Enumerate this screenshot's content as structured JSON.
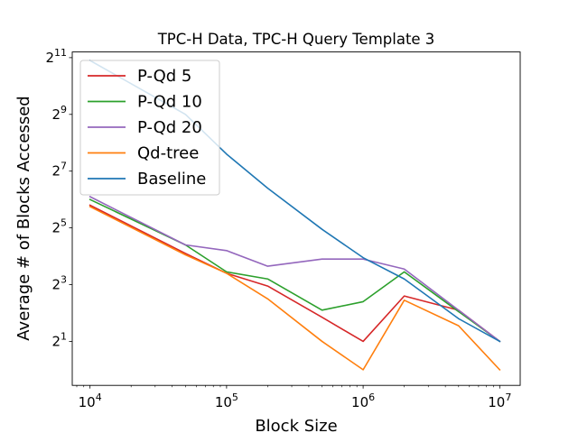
{
  "chart_data": {
    "type": "line",
    "title": "TPC-H Data, TPC-H Query Template 3",
    "xlabel": "Block Size",
    "ylabel": "Average # of Blocks Accessed",
    "xscale": "log10",
    "yscale": "log2",
    "xlim_log10": [
      3.87,
      7.15
    ],
    "ylim_log2": [
      -0.55,
      11.2
    ],
    "xticks": [
      {
        "base": "10",
        "exp": "4",
        "log10": 4
      },
      {
        "base": "10",
        "exp": "5",
        "log10": 5
      },
      {
        "base": "10",
        "exp": "6",
        "log10": 6
      },
      {
        "base": "10",
        "exp": "7",
        "log10": 7
      }
    ],
    "yticks": [
      {
        "base": "2",
        "exp": "1",
        "log2": 1
      },
      {
        "base": "2",
        "exp": "3",
        "log2": 3
      },
      {
        "base": "2",
        "exp": "5",
        "log2": 5
      },
      {
        "base": "2",
        "exp": "7",
        "log2": 7
      },
      {
        "base": "2",
        "exp": "9",
        "log2": 9
      },
      {
        "base": "2",
        "exp": "11",
        "log2": 11
      }
    ],
    "x": [
      10000,
      50000,
      100000,
      200000,
      500000,
      1000000,
      2000000,
      5000000,
      10000000
    ],
    "series": [
      {
        "name": "P-Qd 5",
        "color": "#d62728",
        "values_log2": [
          5.8,
          4.1,
          3.4,
          2.95,
          1.85,
          1.0,
          2.6,
          2.1,
          1.0
        ]
      },
      {
        "name": "P-Qd 10",
        "color": "#2ca02c",
        "values_log2": [
          6.0,
          4.4,
          3.45,
          3.2,
          2.1,
          2.4,
          3.45,
          2.05,
          1.0
        ]
      },
      {
        "name": "P-Qd 20",
        "color": "#9467bd",
        "values_log2": [
          6.1,
          4.4,
          4.2,
          3.65,
          3.9,
          3.9,
          3.55,
          2.1,
          1.0
        ]
      },
      {
        "name": "Qd-tree",
        "color": "#ff7f0e",
        "values_log2": [
          5.75,
          4.05,
          3.4,
          2.5,
          1.0,
          0.0,
          2.45,
          1.55,
          0.0
        ]
      },
      {
        "name": "Baseline",
        "color": "#1f77b4",
        "values_log2": [
          10.9,
          9.0,
          7.6,
          6.4,
          4.95,
          3.95,
          3.2,
          1.8,
          1.0
        ]
      }
    ],
    "legend_position": "top-left"
  }
}
